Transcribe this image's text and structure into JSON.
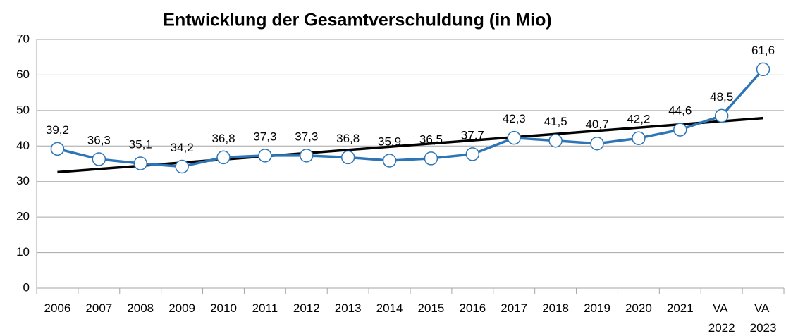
{
  "chart_data": {
    "type": "line",
    "title": "Entwicklung der Gesamtverschuldung (in Mio)",
    "categories": [
      "2006",
      "2007",
      "2008",
      "2009",
      "2010",
      "2011",
      "2012",
      "2013",
      "2014",
      "2015",
      "2016",
      "2017",
      "2018",
      "2019",
      "2020",
      "2021",
      "VA 2022",
      "VA 2023"
    ],
    "series": [
      {
        "name": "Gesamtverschuldung",
        "color": "#2e75b6",
        "values": [
          39.2,
          36.3,
          35.1,
          34.2,
          36.8,
          37.3,
          37.3,
          36.8,
          35.9,
          36.5,
          37.7,
          42.3,
          41.5,
          40.7,
          42.2,
          44.6,
          48.5,
          61.6
        ],
        "value_labels": [
          "39,2",
          "36,3",
          "35,1",
          "34,2",
          "36,8",
          "37,3",
          "37,3",
          "36,8",
          "35,9",
          "36,5",
          "37,7",
          "42,3",
          "41,5",
          "40,7",
          "42,2",
          "44,6",
          "48,5",
          "61,6"
        ]
      }
    ],
    "trendline": {
      "type": "linear",
      "color": "#000000"
    },
    "ylim": [
      0,
      70
    ],
    "yticks": [
      0,
      10,
      20,
      30,
      40,
      50,
      60,
      70
    ],
    "grid": true
  }
}
